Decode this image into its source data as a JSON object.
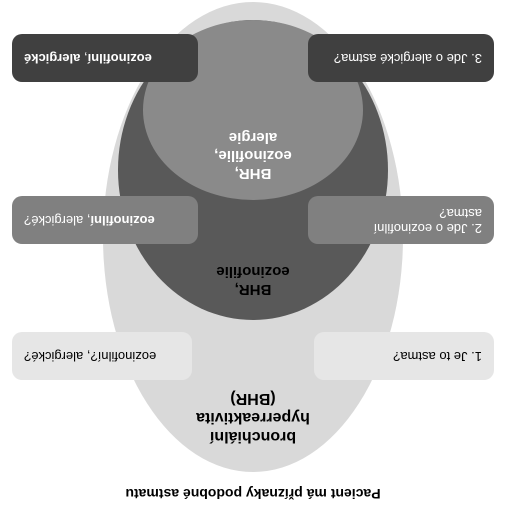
{
  "title": "Pacient má příznaky podobné astmatu",
  "ellipses": {
    "outer": {
      "line1": "bronchiální",
      "line2": "hyperreaktivita",
      "line3": "(BHR)"
    },
    "mid": {
      "line1": "BHR,",
      "line2": "eozinofilie"
    },
    "inner": {
      "line1": "BHR,",
      "line2": "eozinofilie,",
      "line3": "alergie"
    }
  },
  "pills": {
    "l1": "1. Je to astma?",
    "r1": "eozinofilní?, alergické?",
    "l2a": "2. Jde o eozinofilní",
    "l2b": "astma?",
    "r2a": "eozinofilní",
    "r2b": ", alergické?",
    "l3": "3. Jde o alergické astma?",
    "r3a": "eozinofilní",
    "r3b": ", ",
    "r3c": "alergické"
  },
  "colors": {
    "bg": "#ffffff",
    "ell_outer": "#d9d9d9",
    "ell_mid": "#595959",
    "ell_inner": "#8a8a8a",
    "pill1": "#e6e6e6",
    "pill2": "#808080",
    "pill3": "#404040"
  }
}
